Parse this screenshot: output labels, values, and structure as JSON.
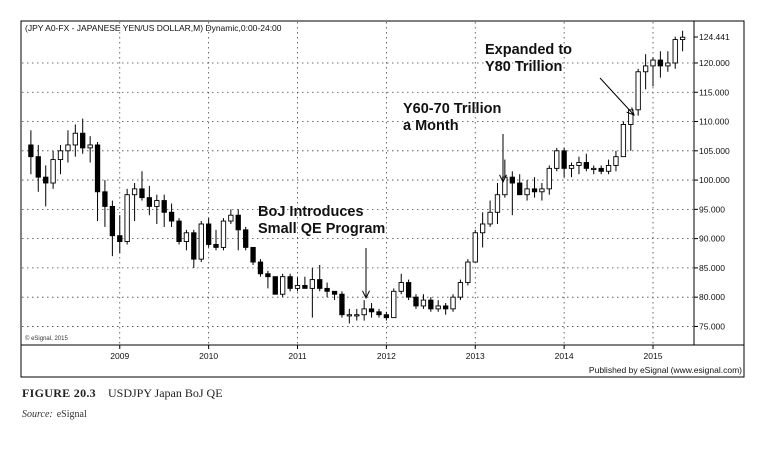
{
  "chart_data": {
    "type": "candlestick",
    "title": "(JPY A0-FX - JAPANESE YEN/US DOLLAR,M) Dynamic,0:00-24:00",
    "ylim": [
      72,
      127
    ],
    "y_ticks": [
      75,
      80,
      85,
      90,
      95,
      100,
      105,
      110,
      115,
      120,
      124.441
    ],
    "y_tick_labels": [
      "75.000",
      "80.000",
      "85.000",
      "90.000",
      "95.000",
      "100.000",
      "105.000",
      "110.000",
      "115.000",
      "120.000",
      "124.441"
    ],
    "x_ticks": [
      {
        "label": "2009",
        "x": 2009
      },
      {
        "label": "2010",
        "x": 2010
      },
      {
        "label": "2011",
        "x": 2011
      },
      {
        "label": "2012",
        "x": 2012
      },
      {
        "label": "2013",
        "x": 2013
      },
      {
        "label": "2014",
        "x": 2014
      },
      {
        "label": "2015",
        "x": 2015
      }
    ],
    "xlim": [
      2007.9,
      2015.45
    ],
    "watermark": "© eSignal, 2015",
    "published_by": "Published by eSignal (www.esignal.com)",
    "grid": true,
    "annotations": [
      {
        "text": "BoJ Introduces\nSmall QE Program",
        "x": 2011.6,
        "y": 76.5
      },
      {
        "text": "Y60-70 Trillion\na Month",
        "x": 2013.2,
        "y": 100
      },
      {
        "text": "Expanded to\nY80 Trillion",
        "x": 2014.6,
        "y": 112
      }
    ],
    "candles": [
      {
        "x": 2008.0,
        "o": 106.0,
        "h": 108.5,
        "l": 101.0,
        "c": 104.0
      },
      {
        "x": 2008.083,
        "o": 104.0,
        "h": 106.0,
        "l": 98.0,
        "c": 100.5
      },
      {
        "x": 2008.167,
        "o": 100.5,
        "h": 102.5,
        "l": 95.5,
        "c": 99.5
      },
      {
        "x": 2008.25,
        "o": 99.5,
        "h": 105.0,
        "l": 98.5,
        "c": 103.5
      },
      {
        "x": 2008.333,
        "o": 103.5,
        "h": 106.0,
        "l": 101.0,
        "c": 105.0
      },
      {
        "x": 2008.417,
        "o": 105.0,
        "h": 108.5,
        "l": 103.0,
        "c": 106.0
      },
      {
        "x": 2008.5,
        "o": 106.0,
        "h": 109.5,
        "l": 104.0,
        "c": 108.0
      },
      {
        "x": 2008.583,
        "o": 108.0,
        "h": 110.5,
        "l": 104.5,
        "c": 105.5
      },
      {
        "x": 2008.667,
        "o": 105.5,
        "h": 107.5,
        "l": 103.0,
        "c": 106.0
      },
      {
        "x": 2008.75,
        "o": 106.0,
        "h": 106.5,
        "l": 93.0,
        "c": 98.0
      },
      {
        "x": 2008.833,
        "o": 98.0,
        "h": 100.0,
        "l": 92.0,
        "c": 95.5
      },
      {
        "x": 2008.917,
        "o": 95.5,
        "h": 96.5,
        "l": 87.0,
        "c": 90.5
      },
      {
        "x": 2009.0,
        "o": 90.5,
        "h": 94.0,
        "l": 87.5,
        "c": 89.5
      },
      {
        "x": 2009.083,
        "o": 89.5,
        "h": 98.5,
        "l": 89.0,
        "c": 97.5
      },
      {
        "x": 2009.167,
        "o": 97.5,
        "h": 99.5,
        "l": 93.0,
        "c": 98.5
      },
      {
        "x": 2009.25,
        "o": 98.5,
        "h": 101.5,
        "l": 96.5,
        "c": 97.0
      },
      {
        "x": 2009.333,
        "o": 97.0,
        "h": 99.0,
        "l": 94.0,
        "c": 95.5
      },
      {
        "x": 2009.417,
        "o": 95.5,
        "h": 97.5,
        "l": 92.5,
        "c": 96.5
      },
      {
        "x": 2009.5,
        "o": 96.5,
        "h": 97.5,
        "l": 92.0,
        "c": 94.5
      },
      {
        "x": 2009.583,
        "o": 94.5,
        "h": 96.0,
        "l": 92.0,
        "c": 93.0
      },
      {
        "x": 2009.667,
        "o": 93.0,
        "h": 93.5,
        "l": 89.0,
        "c": 89.5
      },
      {
        "x": 2009.75,
        "o": 89.5,
        "h": 91.5,
        "l": 88.0,
        "c": 91.0
      },
      {
        "x": 2009.833,
        "o": 91.0,
        "h": 91.5,
        "l": 85.0,
        "c": 86.5
      },
      {
        "x": 2009.917,
        "o": 86.5,
        "h": 93.0,
        "l": 86.0,
        "c": 92.5
      },
      {
        "x": 2010.0,
        "o": 92.5,
        "h": 93.5,
        "l": 88.5,
        "c": 89.0
      },
      {
        "x": 2010.083,
        "o": 89.0,
        "h": 91.5,
        "l": 88.0,
        "c": 88.5
      },
      {
        "x": 2010.167,
        "o": 88.5,
        "h": 93.5,
        "l": 88.0,
        "c": 93.0
      },
      {
        "x": 2010.25,
        "o": 93.0,
        "h": 95.0,
        "l": 92.5,
        "c": 94.0
      },
      {
        "x": 2010.333,
        "o": 94.0,
        "h": 95.0,
        "l": 88.0,
        "c": 91.5
      },
      {
        "x": 2010.417,
        "o": 91.5,
        "h": 92.0,
        "l": 88.0,
        "c": 88.5
      },
      {
        "x": 2010.5,
        "o": 88.5,
        "h": 88.5,
        "l": 85.5,
        "c": 86.0
      },
      {
        "x": 2010.583,
        "o": 86.0,
        "h": 86.5,
        "l": 83.5,
        "c": 84.0
      },
      {
        "x": 2010.667,
        "o": 84.0,
        "h": 84.5,
        "l": 81.5,
        "c": 83.5
      },
      {
        "x": 2010.75,
        "o": 83.5,
        "h": 83.5,
        "l": 80.5,
        "c": 80.5
      },
      {
        "x": 2010.833,
        "o": 80.5,
        "h": 84.0,
        "l": 80.0,
        "c": 83.5
      },
      {
        "x": 2010.917,
        "o": 83.5,
        "h": 84.0,
        "l": 81.0,
        "c": 81.5
      },
      {
        "x": 2011.0,
        "o": 81.5,
        "h": 83.5,
        "l": 81.0,
        "c": 82.0
      },
      {
        "x": 2011.083,
        "o": 82.0,
        "h": 83.5,
        "l": 81.5,
        "c": 81.5
      },
      {
        "x": 2011.167,
        "o": 81.5,
        "h": 85.0,
        "l": 76.5,
        "c": 83.0
      },
      {
        "x": 2011.25,
        "o": 83.0,
        "h": 85.5,
        "l": 81.0,
        "c": 81.5
      },
      {
        "x": 2011.333,
        "o": 81.5,
        "h": 82.5,
        "l": 80.0,
        "c": 81.0
      },
      {
        "x": 2011.417,
        "o": 81.0,
        "h": 81.0,
        "l": 79.5,
        "c": 80.5
      },
      {
        "x": 2011.5,
        "o": 80.5,
        "h": 81.0,
        "l": 76.5,
        "c": 77.0
      },
      {
        "x": 2011.583,
        "o": 77.0,
        "h": 78.0,
        "l": 75.5,
        "c": 77.0
      },
      {
        "x": 2011.667,
        "o": 77.0,
        "h": 78.0,
        "l": 76.0,
        "c": 77.0
      },
      {
        "x": 2011.75,
        "o": 77.0,
        "h": 79.5,
        "l": 76.0,
        "c": 78.0
      },
      {
        "x": 2011.833,
        "o": 78.0,
        "h": 79.0,
        "l": 76.5,
        "c": 77.5
      },
      {
        "x": 2011.917,
        "o": 77.5,
        "h": 78.0,
        "l": 76.5,
        "c": 77.0
      },
      {
        "x": 2012.0,
        "o": 77.0,
        "h": 77.5,
        "l": 76.0,
        "c": 76.5
      },
      {
        "x": 2012.083,
        "o": 76.5,
        "h": 81.5,
        "l": 76.5,
        "c": 81.0
      },
      {
        "x": 2012.167,
        "o": 81.0,
        "h": 84.0,
        "l": 80.5,
        "c": 82.5
      },
      {
        "x": 2012.25,
        "o": 82.5,
        "h": 83.0,
        "l": 79.5,
        "c": 80.0
      },
      {
        "x": 2012.333,
        "o": 80.0,
        "h": 80.5,
        "l": 78.0,
        "c": 78.5
      },
      {
        "x": 2012.417,
        "o": 78.5,
        "h": 80.5,
        "l": 78.0,
        "c": 79.5
      },
      {
        "x": 2012.5,
        "o": 79.5,
        "h": 80.0,
        "l": 77.5,
        "c": 78.0
      },
      {
        "x": 2012.583,
        "o": 78.0,
        "h": 79.5,
        "l": 77.5,
        "c": 78.5
      },
      {
        "x": 2012.667,
        "o": 78.5,
        "h": 79.0,
        "l": 77.0,
        "c": 78.0
      },
      {
        "x": 2012.75,
        "o": 78.0,
        "h": 80.5,
        "l": 77.5,
        "c": 80.0
      },
      {
        "x": 2012.833,
        "o": 80.0,
        "h": 83.0,
        "l": 79.5,
        "c": 82.5
      },
      {
        "x": 2012.917,
        "o": 82.5,
        "h": 86.5,
        "l": 82.0,
        "c": 86.0
      },
      {
        "x": 2013.0,
        "o": 86.0,
        "h": 91.5,
        "l": 86.0,
        "c": 91.0
      },
      {
        "x": 2013.083,
        "o": 91.0,
        "h": 94.5,
        "l": 88.5,
        "c": 92.5
      },
      {
        "x": 2013.167,
        "o": 92.5,
        "h": 96.5,
        "l": 92.0,
        "c": 94.5
      },
      {
        "x": 2013.25,
        "o": 94.5,
        "h": 99.5,
        "l": 92.5,
        "c": 97.5
      },
      {
        "x": 2013.333,
        "o": 97.5,
        "h": 103.5,
        "l": 97.0,
        "c": 100.5
      },
      {
        "x": 2013.417,
        "o": 100.5,
        "h": 101.5,
        "l": 94.0,
        "c": 99.5
      },
      {
        "x": 2013.5,
        "o": 99.5,
        "h": 101.0,
        "l": 97.5,
        "c": 97.5
      },
      {
        "x": 2013.583,
        "o": 97.5,
        "h": 100.0,
        "l": 96.5,
        "c": 98.5
      },
      {
        "x": 2013.667,
        "o": 98.5,
        "h": 100.5,
        "l": 97.0,
        "c": 98.0
      },
      {
        "x": 2013.75,
        "o": 98.0,
        "h": 99.5,
        "l": 96.5,
        "c": 98.5
      },
      {
        "x": 2013.833,
        "o": 98.5,
        "h": 102.5,
        "l": 97.5,
        "c": 102.0
      },
      {
        "x": 2013.917,
        "o": 102.0,
        "h": 105.5,
        "l": 101.5,
        "c": 105.0
      },
      {
        "x": 2014.0,
        "o": 105.0,
        "h": 105.5,
        "l": 100.5,
        "c": 102.0
      },
      {
        "x": 2014.083,
        "o": 102.0,
        "h": 103.0,
        "l": 100.5,
        "c": 102.5
      },
      {
        "x": 2014.167,
        "o": 102.5,
        "h": 104.0,
        "l": 101.0,
        "c": 103.0
      },
      {
        "x": 2014.25,
        "o": 103.0,
        "h": 104.5,
        "l": 101.5,
        "c": 102.0
      },
      {
        "x": 2014.333,
        "o": 102.0,
        "h": 102.5,
        "l": 101.0,
        "c": 102.0
      },
      {
        "x": 2014.417,
        "o": 102.0,
        "h": 102.5,
        "l": 101.0,
        "c": 101.5
      },
      {
        "x": 2014.5,
        "o": 101.5,
        "h": 103.5,
        "l": 101.0,
        "c": 102.5
      },
      {
        "x": 2014.583,
        "o": 102.5,
        "h": 105.0,
        "l": 101.5,
        "c": 104.0
      },
      {
        "x": 2014.667,
        "o": 104.0,
        "h": 110.0,
        "l": 104.0,
        "c": 109.5
      },
      {
        "x": 2014.75,
        "o": 109.5,
        "h": 112.0,
        "l": 105.0,
        "c": 112.0
      },
      {
        "x": 2014.833,
        "o": 112.0,
        "h": 119.0,
        "l": 111.0,
        "c": 118.5
      },
      {
        "x": 2014.917,
        "o": 118.5,
        "h": 121.5,
        "l": 115.5,
        "c": 119.5
      },
      {
        "x": 2015.0,
        "o": 119.5,
        "h": 121.0,
        "l": 116.0,
        "c": 120.5
      },
      {
        "x": 2015.083,
        "o": 120.5,
        "h": 122.0,
        "l": 117.5,
        "c": 119.5
      },
      {
        "x": 2015.167,
        "o": 119.5,
        "h": 122.0,
        "l": 118.5,
        "c": 120.0
      },
      {
        "x": 2015.25,
        "o": 120.0,
        "h": 124.5,
        "l": 119.0,
        "c": 124.0
      },
      {
        "x": 2015.333,
        "o": 124.0,
        "h": 125.5,
        "l": 122.0,
        "c": 124.4
      }
    ]
  },
  "caption": {
    "figure_label": "FIGURE 20.3",
    "figure_title": "USDJPY Japan BoJ QE",
    "source_label": "Source:",
    "source_text": "eSignal"
  }
}
